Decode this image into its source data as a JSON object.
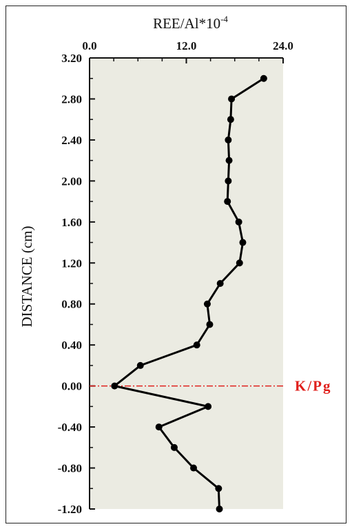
{
  "chart_data": {
    "type": "line",
    "title": "",
    "xlabel": "REE/Al*10",
    "xlabel_exponent": "-4",
    "ylabel": "DISTANCE (cm)",
    "xlim": [
      0,
      24
    ],
    "ylim": [
      -1.2,
      3.2
    ],
    "x_ticks": [
      "0.0",
      "12.0",
      "24.0"
    ],
    "x_tick_values": [
      0,
      12,
      24
    ],
    "y_ticks": [
      "3.20",
      "2.80",
      "2.40",
      "2.00",
      "1.60",
      "1.20",
      "0.80",
      "0.40",
      "0.00",
      "-0.40",
      "-0.80",
      "-1.20"
    ],
    "y_tick_values": [
      3.2,
      2.8,
      2.4,
      2.0,
      1.6,
      1.2,
      0.8,
      0.4,
      0.0,
      -0.4,
      -0.8,
      -1.2
    ],
    "grid": false,
    "plot_background": "#ebebe2",
    "series": [
      {
        "color": "#000000",
        "x": [
          21.6,
          17.6,
          17.5,
          17.2,
          17.3,
          17.2,
          17.1,
          18.5,
          19.0,
          18.6,
          16.2,
          14.6,
          14.9,
          13.3,
          6.3,
          3.1,
          14.7,
          8.6,
          10.5,
          12.9,
          16.0,
          16.1
        ],
        "y": [
          3.0,
          2.8,
          2.6,
          2.4,
          2.2,
          2.0,
          1.8,
          1.6,
          1.4,
          1.2,
          1.0,
          0.8,
          0.6,
          0.4,
          0.2,
          0.0,
          -0.2,
          -0.4,
          -0.6,
          -0.8,
          -1.0,
          -1.2
        ]
      }
    ],
    "reference_line": {
      "y": 0.0,
      "label": "K/Pg",
      "color": "#e0201c"
    }
  }
}
